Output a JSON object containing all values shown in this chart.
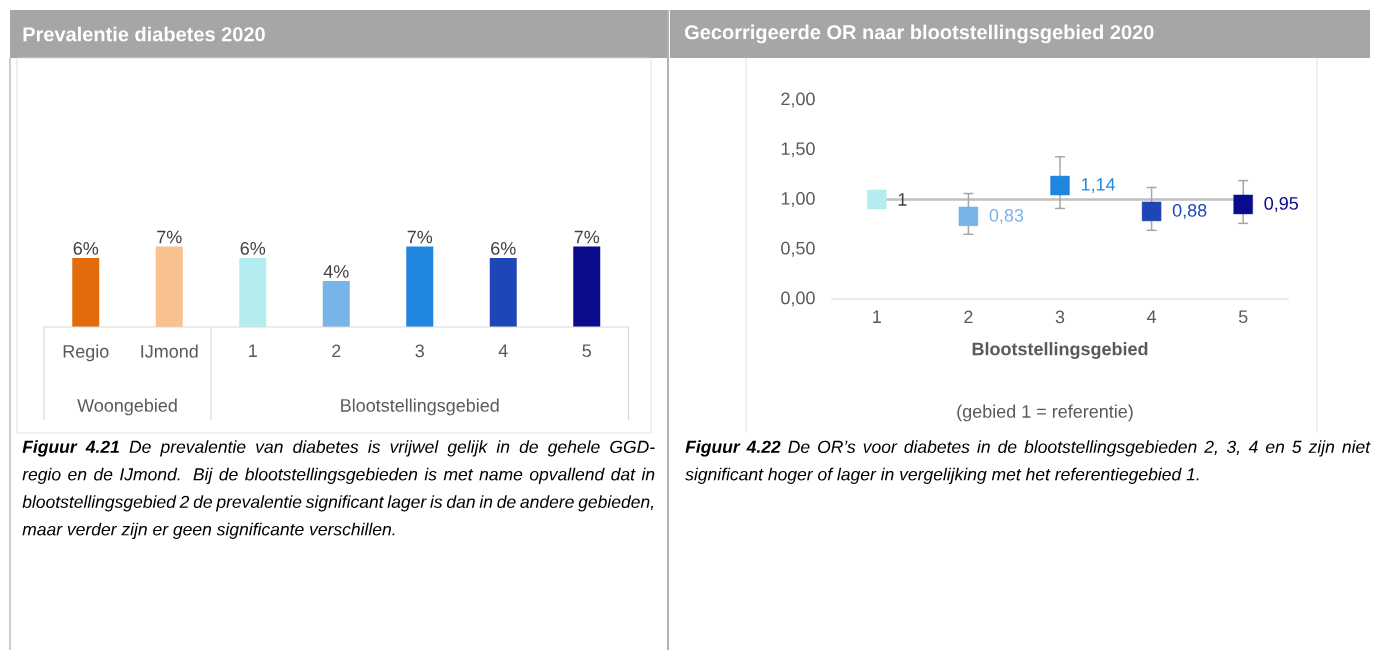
{
  "chart_data": [
    {
      "type": "bar",
      "title": "Prevalentie diabetes 2020",
      "categories": [
        "Regio",
        "IJmond",
        "1",
        "2",
        "3",
        "4",
        "5"
      ],
      "values": [
        6,
        7,
        6,
        4,
        7,
        6,
        7
      ],
      "colors": [
        "#e36c0a",
        "#f9c090",
        "#b4ecef",
        "#78b4e8",
        "#1f87e0",
        "#1e46b8",
        "#0a0c8c"
      ],
      "value_labels": [
        "6%",
        "7%",
        "6%",
        "4%",
        "7%",
        "6%",
        "7%"
      ],
      "annotations": [
        "Woongebied",
        "Blootstellingsgebied",
        "**Figuur 4.21** De prevalentie van diabetes is vrijwel gelijk in de gehele GGD-regio en de IJmond. Bij de blootstellingsgebieden is met name opvallend dat in blootstellingsgebied 2 de prevalentie significant lager is dan in de andere gebieden, maar verder zijn er geen significante verschillen."
      ]
    },
    {
      "type": "scatter",
      "title": "Gecorrigeerde OR naar blootstellingsgebied 2020",
      "xlabel": "Blootstellingsgebied",
      "categories": [
        "1",
        "2",
        "3",
        "4",
        "5"
      ],
      "values": [
        1,
        0.83,
        1.14,
        0.88,
        0.95
      ],
      "colors": [
        "#b4ecef",
        "#78b4e8",
        "#1f87e0",
        "#1e46b8",
        "#0a0c8c"
      ],
      "errors": [
        null,
        [
          0.65,
          1.06
        ],
        [
          0.91,
          1.43
        ],
        [
          0.69,
          1.12
        ],
        [
          0.76,
          1.19
        ]
      ],
      "value_labels": [
        "1",
        "0,83",
        "1,14",
        "0,88",
        "0,95"
      ],
      "marker": "square",
      "ylim": [
        0,
        2
      ],
      "yticks": [
        {
          "value": 0,
          "label": "0,00"
        },
        {
          "value": 0.5,
          "label": "0,50"
        },
        {
          "value": 1,
          "label": "1,00"
        },
        {
          "value": 1.5,
          "label": "1,50"
        },
        {
          "value": 2,
          "label": "2,00"
        }
      ],
      "ref_lines": [
        {
          "axis": "y",
          "value": 1,
          "color": "#bfbfbf"
        }
      ],
      "annotations": [
        "(gebied 1 = referentie)",
        "**Figuur 4.22** De OR’s voor diabetes in de blootstellingsgebieden 2, 3, 4 en 5 zijn niet significant hoger of lager in vergelijking met het referentiegebied 1."
      ]
    }
  ]
}
